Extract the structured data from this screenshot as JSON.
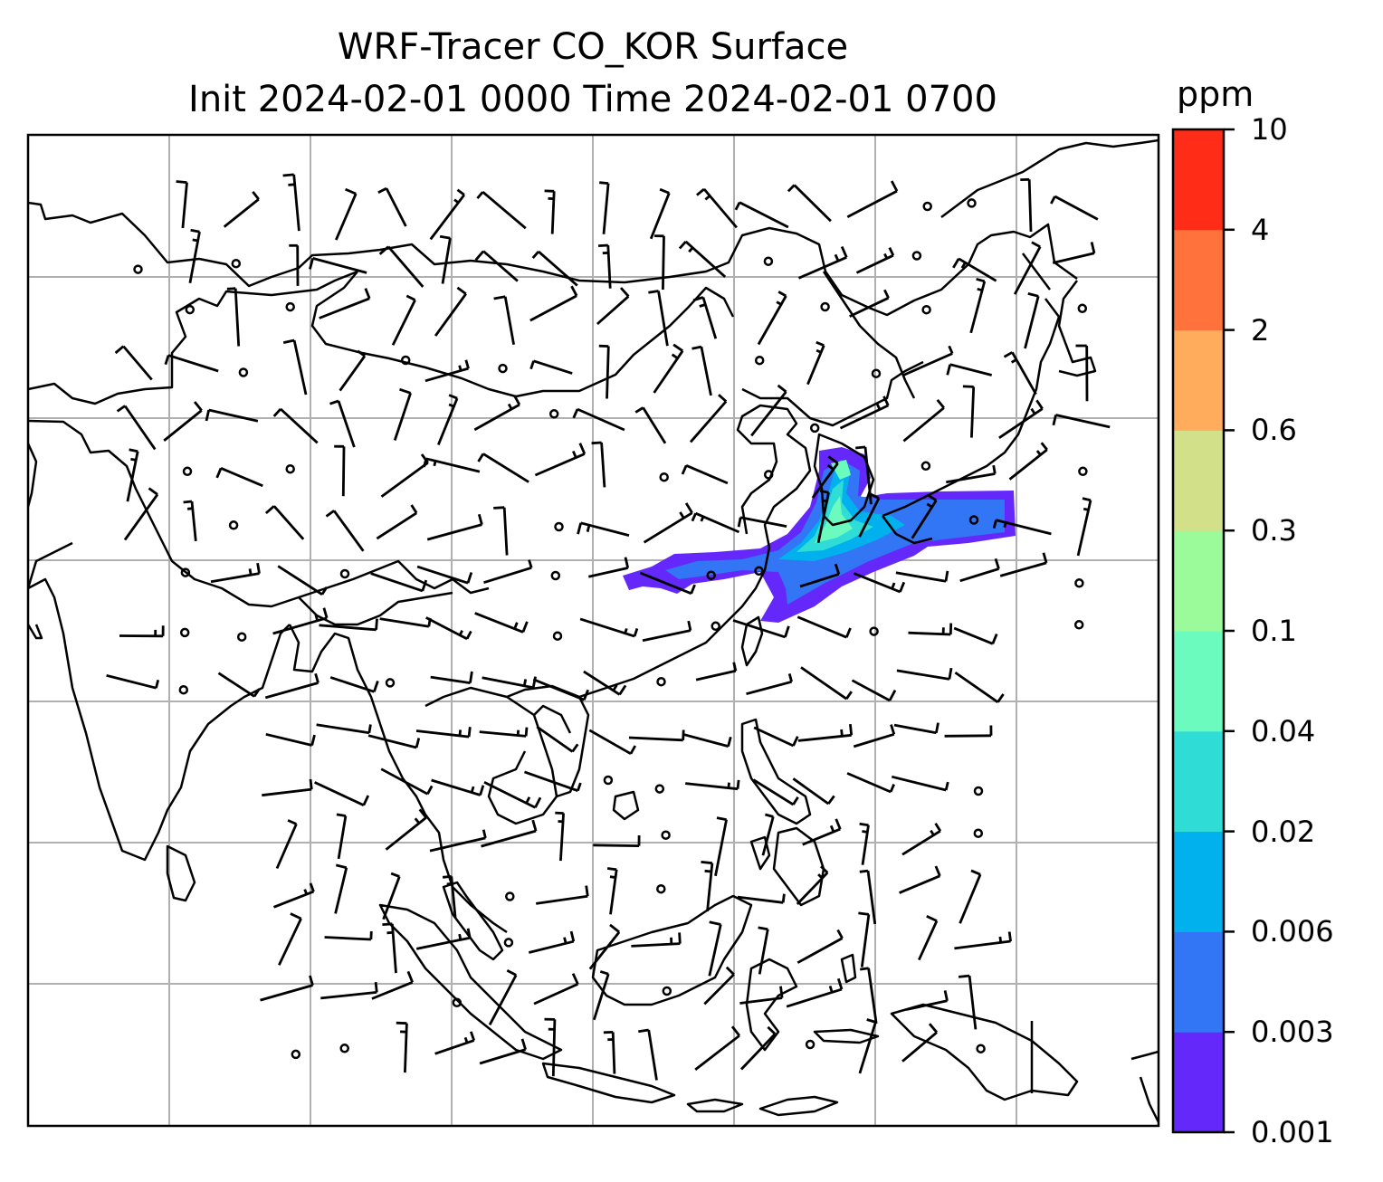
{
  "title": {
    "line1": "WRF-Tracer CO_KOR Surface",
    "line2": "Init 2024-02-01 0000 Time 2024-02-01 0700"
  },
  "colorbar": {
    "unit": "ppm",
    "levels": [
      "0.001",
      "0.003",
      "0.006",
      "0.02",
      "0.04",
      "0.1",
      "0.3",
      "0.6",
      "2",
      "4",
      "10"
    ],
    "colors": [
      "#6428fa",
      "#3275f5",
      "#00b1ed",
      "#2fdcd6",
      "#6bfbbe",
      "#9bfb9a",
      "#d2e089",
      "#ffad5d",
      "#ff723b",
      "#ff2c18"
    ]
  },
  "map": {
    "gridlines": "on",
    "grid_color": "#b0b0b0",
    "coastline_color": "#000000",
    "symbols": "wind barbs and calm circles"
  }
}
